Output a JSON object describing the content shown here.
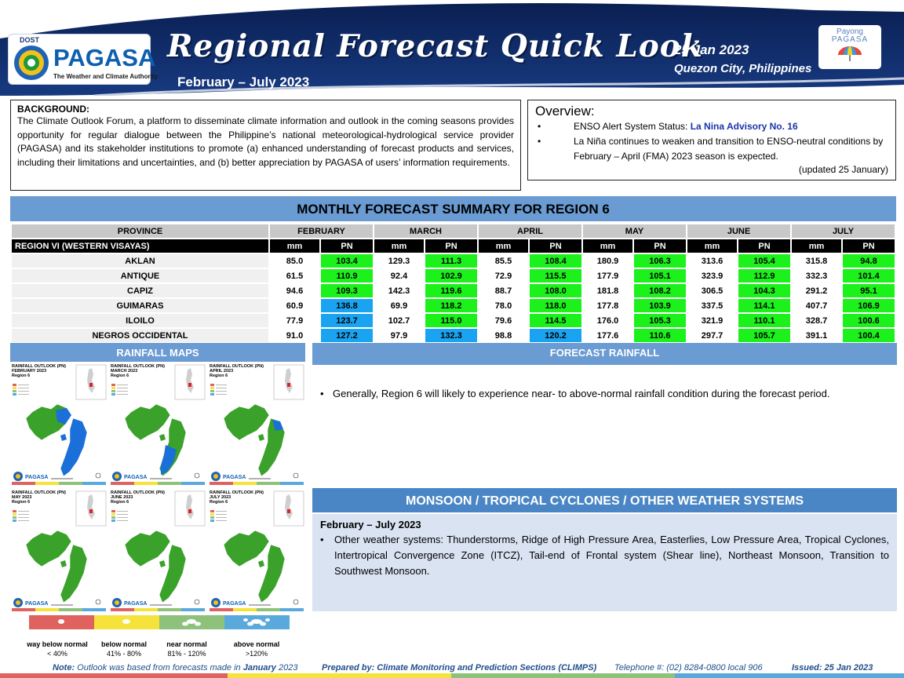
{
  "header": {
    "agency_small": "DOST",
    "agency": "PAGASA",
    "agency_tagline": "The Weather and Climate Authority",
    "title": "Regional Forecast Quick Look",
    "period": "February – July 2023",
    "date": "25 Jan 2023",
    "place": "Quezon City, Philippines",
    "payong_line1": "Payong",
    "payong_line2": "PAGASA"
  },
  "background": {
    "heading": "BACKGROUND:",
    "text": "The Climate Outlook Forum, a platform to disseminate climate information and outlook in the coming seasons provides opportunity for regular dialogue between the Philippine’s national meteorological-hydrological service provider (PAGASA) and its stakeholder institutions to promote (a) enhanced understanding of forecast products and services, including their limitations and uncertainties, and (b) better appreciation by PAGASA of users’ information requirements."
  },
  "overview": {
    "heading": "Overview:",
    "bullet1_prefix": "ENSO Alert System Status: ",
    "bullet1_highlight": "La Nina Advisory No. 16",
    "bullet2": "La Niña continues to weaken and transition to ENSO-neutral conditions by February – April (FMA) 2023  season is expected.",
    "updated": "(updated 25 January)"
  },
  "summary": {
    "title": "MONTHLY FORECAST SUMMARY FOR REGION 6",
    "province_header": "PROVINCE",
    "region_label": "REGION VI (WESTERN VISAYAS)",
    "months": [
      "FEBRUARY",
      "MARCH",
      "APRIL",
      "MAY",
      "JUNE",
      "JULY"
    ],
    "mm_label": "mm",
    "pn_label": "PN",
    "rows": [
      {
        "province": "AKLAN",
        "values": [
          [
            "85.0",
            "103.4",
            "g"
          ],
          [
            "129.3",
            "111.3",
            "g"
          ],
          [
            "85.5",
            "108.4",
            "g"
          ],
          [
            "180.9",
            "106.3",
            "g"
          ],
          [
            "313.6",
            "105.4",
            "g"
          ],
          [
            "315.8",
            "94.8",
            "g"
          ]
        ]
      },
      {
        "province": "ANTIQUE",
        "values": [
          [
            "61.5",
            "110.9",
            "g"
          ],
          [
            "92.4",
            "102.9",
            "g"
          ],
          [
            "72.9",
            "115.5",
            "g"
          ],
          [
            "177.9",
            "105.1",
            "g"
          ],
          [
            "323.9",
            "112.9",
            "g"
          ],
          [
            "332.3",
            "101.4",
            "g"
          ]
        ]
      },
      {
        "province": "CAPIZ",
        "values": [
          [
            "94.6",
            "109.3",
            "g"
          ],
          [
            "142.3",
            "119.6",
            "g"
          ],
          [
            "88.7",
            "108.0",
            "g"
          ],
          [
            "181.8",
            "108.2",
            "g"
          ],
          [
            "306.5",
            "104.3",
            "g"
          ],
          [
            "291.2",
            "95.1",
            "g"
          ]
        ]
      },
      {
        "province": "GUIMARAS",
        "values": [
          [
            "60.9",
            "136.8",
            "b"
          ],
          [
            "69.9",
            "118.2",
            "g"
          ],
          [
            "78.0",
            "118.0",
            "g"
          ],
          [
            "177.8",
            "103.9",
            "g"
          ],
          [
            "337.5",
            "114.1",
            "g"
          ],
          [
            "407.7",
            "106.9",
            "g"
          ]
        ]
      },
      {
        "province": "ILOILO",
        "values": [
          [
            "77.9",
            "123.7",
            "b"
          ],
          [
            "102.7",
            "115.0",
            "g"
          ],
          [
            "79.6",
            "114.5",
            "g"
          ],
          [
            "176.0",
            "105.3",
            "g"
          ],
          [
            "321.9",
            "110.1",
            "g"
          ],
          [
            "328.7",
            "100.6",
            "g"
          ]
        ]
      },
      {
        "province": "NEGROS OCCIDENTAL",
        "values": [
          [
            "91.0",
            "127.2",
            "b"
          ],
          [
            "97.9",
            "132.3",
            "b"
          ],
          [
            "98.8",
            "120.2",
            "b"
          ],
          [
            "177.6",
            "110.6",
            "g"
          ],
          [
            "297.7",
            "105.7",
            "g"
          ],
          [
            "391.1",
            "100.4",
            "g"
          ]
        ]
      }
    ]
  },
  "rainfall_maps": {
    "title": "RAINFALL MAPS",
    "maps": [
      {
        "line1": "RAINFALL OUTLOOK (PN)",
        "line2": "FEBRUARY 2023",
        "line3": "Region 6",
        "variant": "blue-east"
      },
      {
        "line1": "RAINFALL OUTLOOK (PN)",
        "line2": "MARCH 2023",
        "line3": "Region 6",
        "variant": "blue-south"
      },
      {
        "line1": "RAINFALL OUTLOOK (PN)",
        "line2": "APRIL 2023",
        "line3": "Region 6",
        "variant": "blue-tip"
      },
      {
        "line1": "RAINFALL OUTLOOK (PN)",
        "line2": "MAY 2023",
        "line3": "Region 6",
        "variant": "green"
      },
      {
        "line1": "RAINFALL OUTLOOK (PN)",
        "line2": "JUNE 2023",
        "line3": "Region 6",
        "variant": "green"
      },
      {
        "line1": "RAINFALL OUTLOOK (PN)",
        "line2": "JULY 2023",
        "line3": "Region 6",
        "variant": "green"
      }
    ],
    "legend": [
      {
        "label": "way below normal",
        "range": "< 40%",
        "color": "#e0625f"
      },
      {
        "label": "below normal",
        "range": "41% -  80%",
        "color": "#f5e33b"
      },
      {
        "label": "near normal",
        "range": "81% - 120%",
        "color": "#8ec27a"
      },
      {
        "label": "above normal",
        "range": ">120%",
        "color": "#5aa9dc"
      }
    ]
  },
  "forecast_rainfall": {
    "title": "FORECAST RAINFALL",
    "text": "Generally, Region 6 will likely to experience near- to above-normal rainfall condition during the forecast period."
  },
  "systems": {
    "title": "MONSOON / TROPICAL CYCLONES / OTHER WEATHER SYSTEMS",
    "period": "February – July 2023",
    "text": "Other weather systems: Thunderstorms,  Ridge of High Pressure Area,  Easterlies, Low Pressure Area, Tropical Cyclones, Intertropical Convergence Zone (ITCZ), Tail-end of Frontal system (Shear line), Northeast Monsoon, Transition to Southwest Monsoon."
  },
  "footer": {
    "note_label": "Note:",
    "note_a": " Outlook was based from forecasts made in ",
    "note_month": "January",
    "note_b": " 2023",
    "prepared": "Prepared by: Climate Monitoring and Prediction Sections (CLIMPS)",
    "phone": "Telephone #: (02) 8284-0800 local 906",
    "issued": "Issued: 25 Jan 2023"
  },
  "colors": {
    "header_navy": "#0f2a63",
    "section_blue": "#6a9bd2",
    "pn_green": "#1cf11c",
    "pn_blue": "#1aa3f0",
    "map_green": "#3aa12a",
    "map_blue": "#1a6fd8"
  }
}
